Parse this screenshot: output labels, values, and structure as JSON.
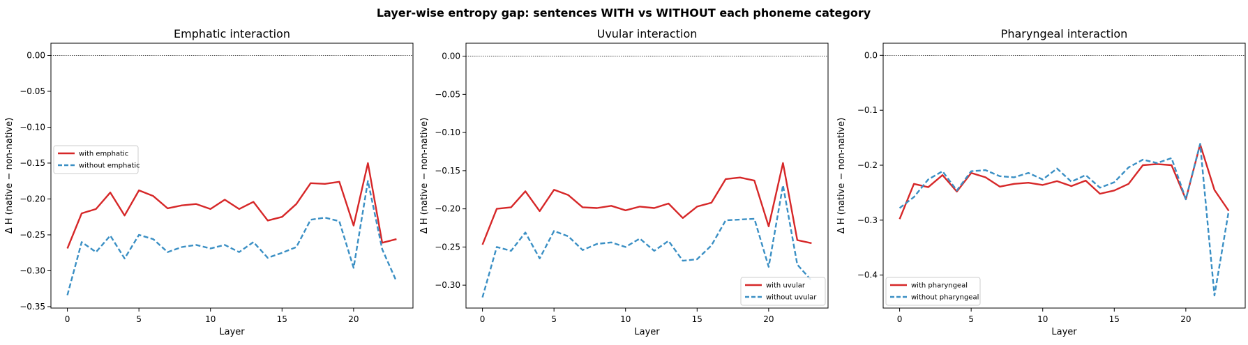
{
  "suptitle": "Layer-wise entropy gap: sentences WITH vs WITHOUT each phoneme category",
  "colors": {
    "with": "#d62728",
    "without": "#3a8fc4"
  },
  "chart_data": [
    {
      "type": "line",
      "title": "Emphatic interaction",
      "xlabel": "Layer",
      "ylabel": "Δ H (native − non-native)",
      "xlim": [
        -1.15,
        24.15
      ],
      "ylim": [
        -0.352,
        0.017
      ],
      "xticks": [
        0,
        5,
        10,
        15,
        20
      ],
      "yticks": [
        0.0,
        -0.05,
        -0.1,
        -0.15,
        -0.2,
        -0.25,
        -0.3,
        -0.35
      ],
      "ytick_labels": [
        "0.00",
        "−0.05",
        "−0.10",
        "−0.15",
        "−0.20",
        "−0.25",
        "−0.30",
        "−0.35"
      ],
      "legend_position": "center-left",
      "x": [
        0,
        1,
        2,
        3,
        4,
        5,
        6,
        7,
        8,
        9,
        10,
        11,
        12,
        13,
        14,
        15,
        16,
        17,
        18,
        19,
        20,
        21,
        22,
        23
      ],
      "series": [
        {
          "name": "with emphatic",
          "style": "solid",
          "values": [
            -0.269,
            -0.22,
            -0.214,
            -0.191,
            -0.223,
            -0.188,
            -0.196,
            -0.213,
            -0.209,
            -0.207,
            -0.214,
            -0.201,
            -0.214,
            -0.204,
            -0.23,
            -0.225,
            -0.207,
            -0.178,
            -0.179,
            -0.176,
            -0.237,
            -0.15,
            -0.261,
            -0.256
          ]
        },
        {
          "name": "without emphatic",
          "style": "dashed",
          "values": [
            -0.334,
            -0.26,
            -0.274,
            -0.251,
            -0.283,
            -0.25,
            -0.256,
            -0.274,
            -0.267,
            -0.264,
            -0.269,
            -0.264,
            -0.274,
            -0.26,
            -0.282,
            -0.275,
            -0.267,
            -0.229,
            -0.226,
            -0.231,
            -0.296,
            -0.175,
            -0.27,
            -0.315
          ]
        }
      ]
    },
    {
      "type": "line",
      "title": "Uvular interaction",
      "xlabel": "Layer",
      "ylabel": "Δ H (native − non-native)",
      "xlim": [
        -1.15,
        24.15
      ],
      "ylim": [
        -0.33,
        0.017
      ],
      "xticks": [
        0,
        5,
        10,
        15,
        20
      ],
      "yticks": [
        0.0,
        -0.05,
        -0.1,
        -0.15,
        -0.2,
        -0.25,
        -0.3
      ],
      "ytick_labels": [
        "0.00",
        "−0.05",
        "−0.10",
        "−0.15",
        "−0.20",
        "−0.25",
        "−0.30"
      ],
      "legend_position": "lower-right",
      "x": [
        0,
        1,
        2,
        3,
        4,
        5,
        6,
        7,
        8,
        9,
        10,
        11,
        12,
        13,
        14,
        15,
        16,
        17,
        18,
        19,
        20,
        21,
        22,
        23
      ],
      "series": [
        {
          "name": "with uvular",
          "style": "solid",
          "values": [
            -0.247,
            -0.2,
            -0.198,
            -0.177,
            -0.203,
            -0.175,
            -0.182,
            -0.198,
            -0.199,
            -0.196,
            -0.202,
            -0.197,
            -0.199,
            -0.193,
            -0.212,
            -0.197,
            -0.192,
            -0.161,
            -0.159,
            -0.163,
            -0.223,
            -0.14,
            -0.241,
            -0.245
          ]
        },
        {
          "name": "without uvular",
          "style": "dashed",
          "values": [
            -0.316,
            -0.25,
            -0.255,
            -0.231,
            -0.265,
            -0.229,
            -0.236,
            -0.254,
            -0.246,
            -0.244,
            -0.25,
            -0.239,
            -0.255,
            -0.242,
            -0.268,
            -0.266,
            -0.248,
            -0.215,
            -0.214,
            -0.213,
            -0.276,
            -0.169,
            -0.273,
            -0.294
          ]
        }
      ]
    },
    {
      "type": "line",
      "title": "Pharyngeal interaction",
      "xlabel": "Layer",
      "ylabel": "Δ H (native − non-native)",
      "xlim": [
        -1.15,
        24.15
      ],
      "ylim": [
        -0.46,
        0.022
      ],
      "xticks": [
        0,
        5,
        10,
        15,
        20
      ],
      "yticks": [
        0.0,
        -0.1,
        -0.2,
        -0.3,
        -0.4
      ],
      "ytick_labels": [
        "0.0",
        "−0.1",
        "−0.2",
        "−0.3",
        "−0.4"
      ],
      "legend_position": "lower-left",
      "x": [
        0,
        1,
        2,
        3,
        4,
        5,
        6,
        7,
        8,
        9,
        10,
        11,
        12,
        13,
        14,
        15,
        16,
        17,
        18,
        19,
        20,
        21,
        22,
        23
      ],
      "series": [
        {
          "name": "with pharyngeal",
          "style": "solid",
          "values": [
            -0.298,
            -0.234,
            -0.24,
            -0.218,
            -0.248,
            -0.214,
            -0.222,
            -0.239,
            -0.234,
            -0.232,
            -0.236,
            -0.229,
            -0.238,
            -0.228,
            -0.252,
            -0.246,
            -0.234,
            -0.2,
            -0.198,
            -0.2,
            -0.262,
            -0.162,
            -0.245,
            -0.283
          ]
        },
        {
          "name": "without pharyngeal",
          "style": "dashed",
          "values": [
            -0.278,
            -0.258,
            -0.226,
            -0.211,
            -0.246,
            -0.211,
            -0.209,
            -0.22,
            -0.222,
            -0.214,
            -0.226,
            -0.206,
            -0.23,
            -0.218,
            -0.241,
            -0.231,
            -0.204,
            -0.19,
            -0.196,
            -0.187,
            -0.262,
            -0.161,
            -0.437,
            -0.283
          ]
        }
      ]
    }
  ]
}
